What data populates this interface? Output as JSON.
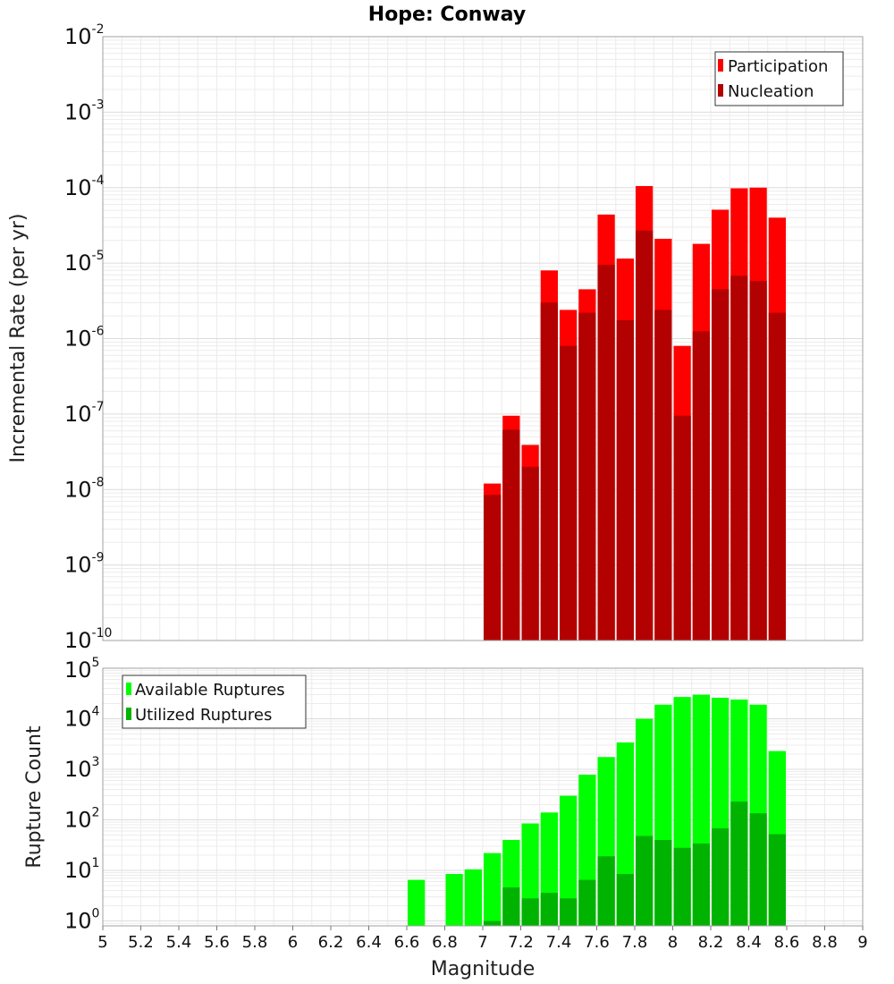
{
  "chart_data": [
    {
      "type": "bar",
      "title": "Hope: Conway",
      "xlabel": "Magnitude",
      "ylabel": "Incremental Rate (per yr)",
      "yscale": "log",
      "ylim": [
        1e-10,
        0.01
      ],
      "xlim": [
        5,
        9
      ],
      "grid": true,
      "legend_position": "top-right",
      "series": [
        {
          "name": "Participation",
          "color": "#ff0000",
          "x": [
            7.05,
            7.15,
            7.25,
            7.35,
            7.45,
            7.55,
            7.65,
            7.75,
            7.85,
            7.95,
            8.05,
            8.15,
            8.25,
            8.35,
            8.45,
            8.55
          ],
          "values": [
            1.2e-08,
            9.5e-08,
            3.9e-08,
            8e-06,
            2.4e-06,
            4.5e-06,
            4.4e-05,
            1.15e-05,
            0.000105,
            2.1e-05,
            8e-07,
            1.8e-05,
            5.1e-05,
            9.8e-05,
            0.0001,
            4e-05
          ]
        },
        {
          "name": "Nucleation",
          "color": "#b30000",
          "x": [
            7.05,
            7.15,
            7.25,
            7.35,
            7.45,
            7.55,
            7.65,
            7.75,
            7.85,
            7.95,
            8.05,
            8.15,
            8.25,
            8.35,
            8.45,
            8.55
          ],
          "values": [
            8.5e-09,
            6.2e-08,
            2e-08,
            3e-06,
            8e-07,
            2.2e-06,
            9.5e-06,
            1.75e-06,
            2.7e-05,
            2.4e-06,
            9.5e-08,
            1.25e-06,
            4.5e-06,
            6.8e-06,
            5.8e-06,
            2.2e-06
          ]
        }
      ]
    },
    {
      "type": "bar",
      "title": "",
      "xlabel": "Magnitude",
      "ylabel": "Rupture Count",
      "yscale": "log",
      "ylim": [
        0.8,
        100000.0
      ],
      "xlim": [
        5,
        9
      ],
      "grid": true,
      "legend_position": "top-left",
      "xticks": [
        "5",
        "5.2",
        "5.4",
        "5.6",
        "5.8",
        "6",
        "6.2",
        "6.4",
        "6.6",
        "6.8",
        "7",
        "7.2",
        "7.4",
        "7.6",
        "7.8",
        "8",
        "8.2",
        "8.4",
        "8.6",
        "8.8",
        "9"
      ],
      "series": [
        {
          "name": "Available Ruptures",
          "color": "#00ff00",
          "x": [
            6.65,
            6.85,
            6.95,
            7.05,
            7.15,
            7.25,
            7.35,
            7.45,
            7.55,
            7.65,
            7.75,
            7.85,
            7.95,
            8.05,
            8.15,
            8.25,
            8.35,
            8.45,
            8.55
          ],
          "values": [
            6.5,
            8.5,
            10.5,
            22,
            40,
            85,
            140,
            300,
            780,
            1750,
            3400,
            10000,
            19000,
            27000,
            30000,
            26000,
            24000,
            19000,
            2300
          ]
        },
        {
          "name": "Utilized Ruptures",
          "color": "#00b300",
          "x": [
            7.05,
            7.15,
            7.25,
            7.35,
            7.45,
            7.55,
            7.65,
            7.75,
            7.85,
            7.95,
            8.05,
            8.15,
            8.25,
            8.35,
            8.45,
            8.55
          ],
          "values": [
            1,
            4.6,
            2.8,
            3.6,
            2.8,
            6.5,
            19,
            8.5,
            48,
            40,
            28,
            34,
            68,
            230,
            135,
            52
          ]
        }
      ]
    }
  ],
  "y_ticks_top": [
    "-2",
    "-3",
    "-4",
    "-5",
    "-6",
    "-7",
    "-8",
    "-9",
    "-10"
  ],
  "y_ticks_bottom": [
    "5",
    "4",
    "3",
    "2",
    "1",
    "0"
  ],
  "y_tick_base": "10"
}
